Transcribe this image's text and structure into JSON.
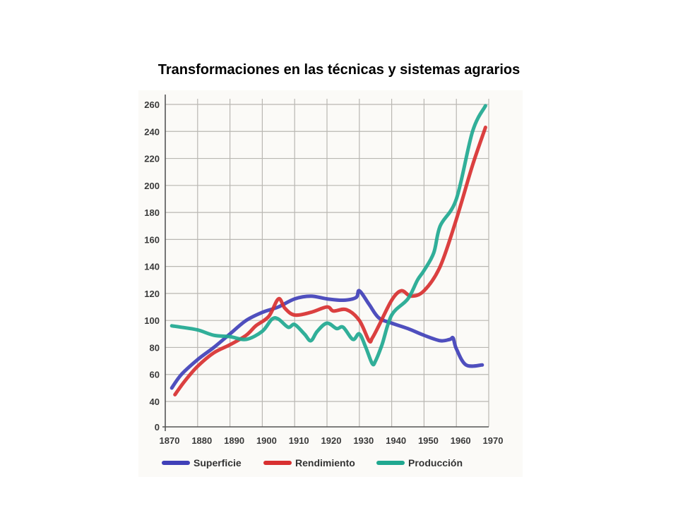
{
  "page": {
    "title": "Transformaciones en las técnicas y sistemas agrarios"
  },
  "chart_data": {
    "type": "line",
    "title": "Transformaciones en las técnicas y sistemas agrarios",
    "xlabel": "",
    "ylabel": "",
    "xlim": [
      1870,
      1970
    ],
    "ylim": [
      0,
      260
    ],
    "xticks": [
      1870,
      1880,
      1890,
      1900,
      1910,
      1920,
      1930,
      1940,
      1950,
      1960,
      1970
    ],
    "yticks": [
      0,
      40,
      60,
      80,
      100,
      120,
      140,
      160,
      180,
      200,
      220,
      240,
      260
    ],
    "grid": true,
    "legend": "bottom",
    "series": [
      {
        "name": "Superficie",
        "color": "#4040b8",
        "x": [
          1872,
          1875,
          1880,
          1885,
          1890,
          1895,
          1900,
          1905,
          1910,
          1915,
          1920,
          1925,
          1929,
          1930,
          1933,
          1936,
          1940,
          1945,
          1950,
          1955,
          1958,
          1959,
          1960,
          1963,
          1968
        ],
        "y": [
          50,
          60,
          71,
          80,
          90,
          100,
          106,
          110,
          116,
          118,
          116,
          115,
          117,
          122,
          112,
          102,
          98,
          94,
          89,
          85,
          86,
          87,
          79,
          67,
          67
        ]
      },
      {
        "name": "Rendimiento",
        "color": "#d83030",
        "x": [
          1873,
          1876,
          1880,
          1885,
          1890,
          1895,
          1898,
          1902,
          1905,
          1907,
          1910,
          1915,
          1920,
          1922,
          1926,
          1930,
          1933,
          1934,
          1936,
          1940,
          1943,
          1946,
          1950,
          1955,
          1960,
          1965,
          1969
        ],
        "y": [
          45,
          55,
          66,
          76,
          82,
          89,
          96,
          103,
          116,
          109,
          104,
          106,
          110,
          107,
          108,
          100,
          85,
          87,
          96,
          115,
          122,
          118,
          122,
          140,
          175,
          215,
          243
        ]
      },
      {
        "name": "Producción",
        "color": "#20a890",
        "x": [
          1872,
          1875,
          1880,
          1885,
          1890,
          1895,
          1900,
          1903,
          1905,
          1908,
          1910,
          1913,
          1915,
          1917,
          1920,
          1923,
          1925,
          1928,
          1930,
          1932,
          1934,
          1935,
          1937,
          1940,
          1945,
          1948,
          1950,
          1953,
          1955,
          1960,
          1965,
          1969
        ],
        "y": [
          96,
          95,
          93,
          89,
          88,
          86,
          92,
          101,
          101,
          95,
          97,
          90,
          85,
          92,
          98,
          94,
          95,
          86,
          90,
          80,
          68,
          70,
          82,
          104,
          116,
          130,
          137,
          150,
          170,
          190,
          240,
          259
        ]
      }
    ]
  }
}
